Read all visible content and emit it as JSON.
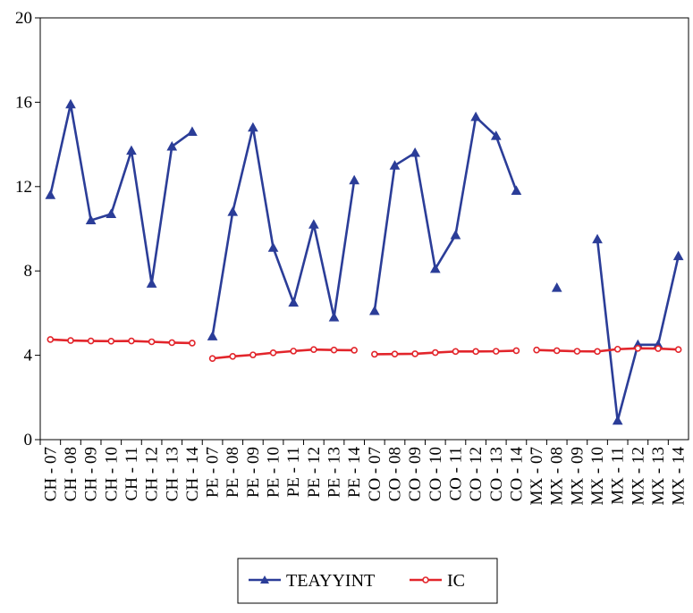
{
  "chart_data": {
    "type": "line",
    "categories": [
      "CH - 07",
      "CH - 08",
      "CH - 09",
      "CH - 10",
      "CH - 11",
      "CH - 12",
      "CH - 13",
      "CH - 14",
      "PE - 07",
      "PE - 08",
      "PE - 09",
      "PE - 10",
      "PE - 11",
      "PE - 12",
      "PE - 13",
      "PE - 14",
      "CO - 07",
      "CO - 08",
      "CO - 09",
      "CO - 10",
      "CO - 11",
      "CO - 12",
      "CO - 13",
      "CO - 14",
      "MX - 07",
      "MX - 08",
      "MX - 09",
      "MX - 10",
      "MX - 11",
      "MX - 12",
      "MX - 13",
      "MX - 14"
    ],
    "groups": [
      {
        "start": 0,
        "end": 7
      },
      {
        "start": 8,
        "end": 15
      },
      {
        "start": 16,
        "end": 23
      },
      {
        "start": 24,
        "end": 31
      }
    ],
    "series": [
      {
        "name": "TEAYYINT",
        "color": "#2b3d98",
        "marker": "triangle",
        "values": [
          11.6,
          15.9,
          10.4,
          10.7,
          13.7,
          7.4,
          13.9,
          14.6,
          4.9,
          10.8,
          14.8,
          9.1,
          6.5,
          10.2,
          5.8,
          12.3,
          6.1,
          13.0,
          13.6,
          8.1,
          9.7,
          15.3,
          14.4,
          11.8,
          null,
          7.2,
          null,
          9.5,
          0.9,
          4.5,
          4.5,
          8.7
        ]
      },
      {
        "name": "IC",
        "color": "#e2252b",
        "marker": "circle",
        "values": [
          4.75,
          4.7,
          4.68,
          4.67,
          4.68,
          4.64,
          4.6,
          4.58,
          3.85,
          3.95,
          4.02,
          4.12,
          4.2,
          4.27,
          4.25,
          4.24,
          4.05,
          4.06,
          4.07,
          4.13,
          4.18,
          4.18,
          4.19,
          4.22,
          4.25,
          4.22,
          4.19,
          4.18,
          4.29,
          4.33,
          4.32,
          4.27
        ]
      }
    ],
    "yticks": [
      "0",
      "4",
      "8",
      "12",
      "16",
      "20"
    ],
    "ylim": [
      0,
      20
    ],
    "grid": false,
    "legend_placement": "bottom-center"
  }
}
